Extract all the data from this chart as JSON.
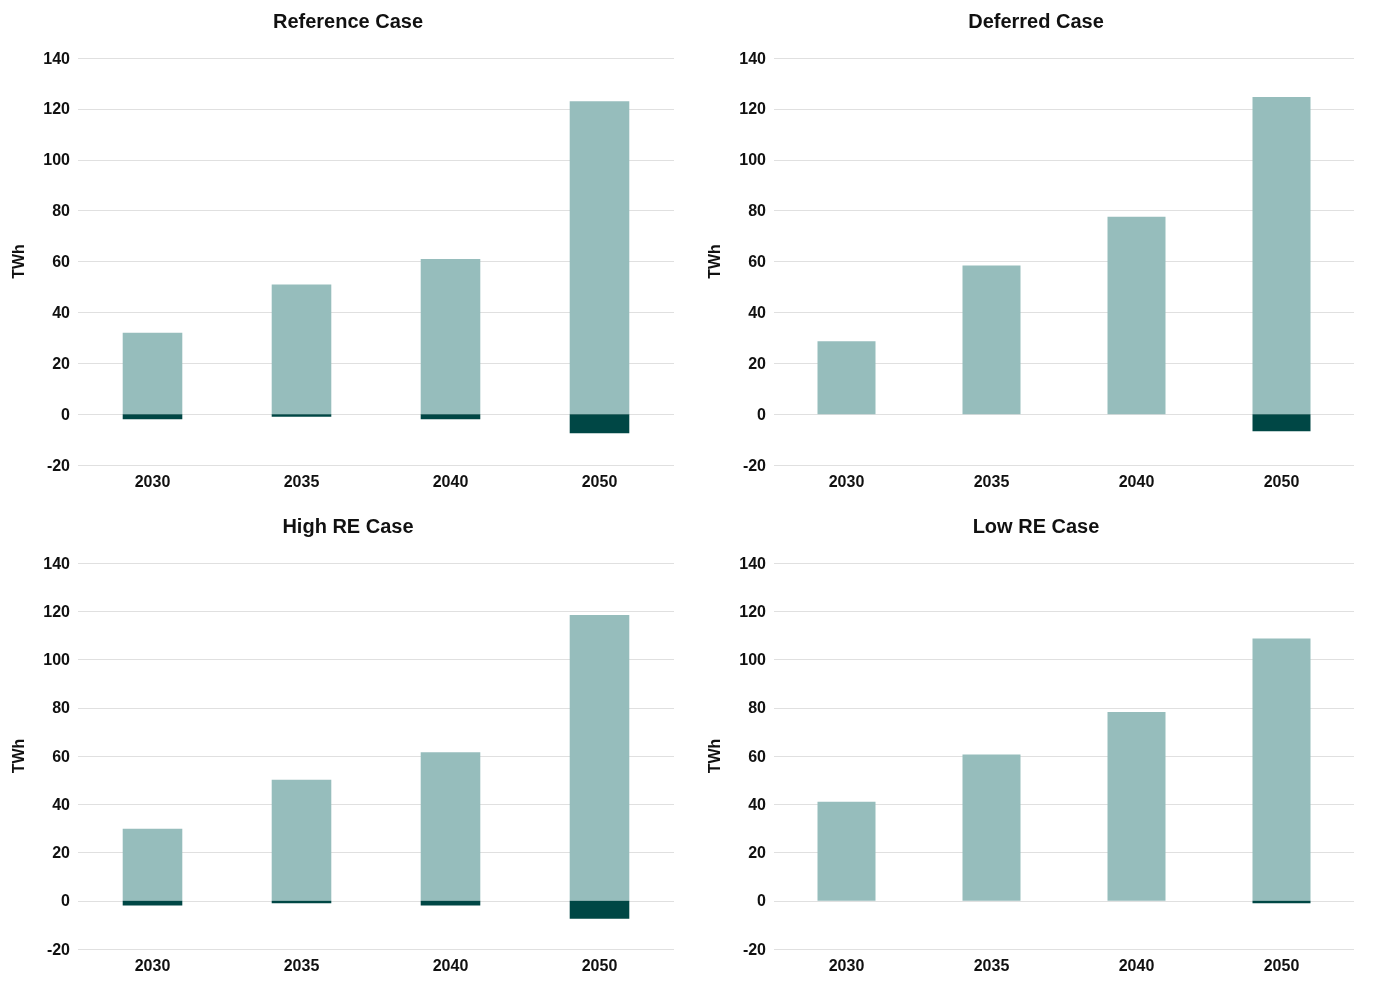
{
  "chart_data": [
    {
      "type": "bar",
      "title": "Reference Case",
      "ylabel": "TWh",
      "categories": [
        "2030",
        "2035",
        "2040",
        "2050"
      ],
      "stacked": true,
      "ylim": [
        -20,
        140
      ],
      "yticks": [
        -20,
        0,
        20,
        40,
        60,
        80,
        100,
        120,
        140
      ],
      "grid": "y",
      "series": [
        {
          "color": "#96bdbc",
          "values": [
            32,
            51,
            61,
            123
          ]
        },
        {
          "color": "#004745",
          "values": [
            -2,
            -1,
            -2,
            -7.5
          ]
        }
      ]
    },
    {
      "type": "bar",
      "title": "Deferred Case",
      "ylabel": "TWh",
      "categories": [
        "2030",
        "2035",
        "2040",
        "2050"
      ],
      "stacked": true,
      "ylim": [
        -20,
        140
      ],
      "yticks": [
        -20,
        0,
        20,
        40,
        60,
        80,
        100,
        120,
        140
      ],
      "grid": "y",
      "series": [
        {
          "color": "#96bdbc",
          "values": [
            28.6,
            58.4,
            77.6,
            124.7
          ]
        },
        {
          "color": "#004745",
          "values": [
            null,
            null,
            null,
            -6.7
          ]
        }
      ]
    },
    {
      "type": "bar",
      "title": "High RE Case",
      "ylabel": "TWh",
      "categories": [
        "2030",
        "2035",
        "2040",
        "2050"
      ],
      "stacked": true,
      "ylim": [
        -20,
        140
      ],
      "yticks": [
        -20,
        0,
        20,
        40,
        60,
        80,
        100,
        120,
        140
      ],
      "grid": "y",
      "series": [
        {
          "color": "#96bdbc",
          "values": [
            29.8,
            50.2,
            61.6,
            118.4
          ]
        },
        {
          "color": "#004745",
          "values": [
            -2,
            -1,
            -2,
            -7.5
          ]
        }
      ]
    },
    {
      "type": "bar",
      "title": "Low RE Case",
      "ylabel": "TWh",
      "categories": [
        "2030",
        "2035",
        "2040",
        "2050"
      ],
      "stacked": true,
      "ylim": [
        -20,
        140
      ],
      "yticks": [
        -20,
        0,
        20,
        40,
        60,
        80,
        100,
        120,
        140
      ],
      "grid": "y",
      "series": [
        {
          "color": "#96bdbc",
          "values": [
            41,
            60.6,
            78.2,
            108.7
          ]
        },
        {
          "color": "#004745",
          "values": [
            null,
            null,
            null,
            -1
          ]
        }
      ]
    }
  ]
}
